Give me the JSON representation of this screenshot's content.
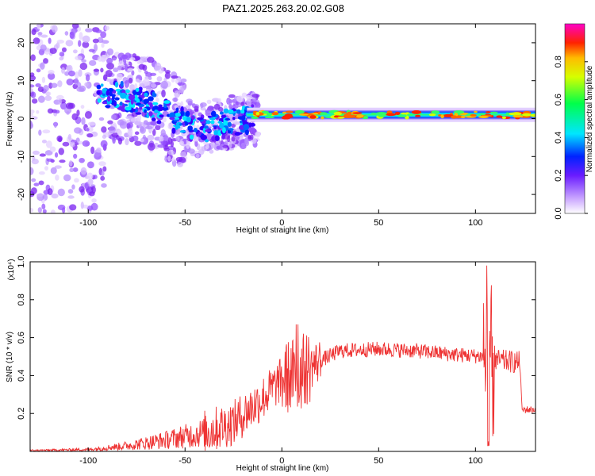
{
  "title": "PAZ1.2025.263.20.02.G08",
  "chart_data": [
    {
      "type": "heatmap",
      "name": "spectrogram",
      "xlabel": "Height of straight line (km)",
      "ylabel": "Frequency (Hz)",
      "xlim": [
        -130,
        131
      ],
      "ylim": [
        -25,
        25
      ],
      "x_ticks": [
        -100,
        -50,
        0,
        50,
        100
      ],
      "y_ticks": [
        -20,
        -10,
        0,
        10,
        20
      ],
      "colorbar": {
        "label": "Normalized spectral amplitude",
        "range": [
          0,
          1
        ],
        "ticks": [
          0.0,
          0.2,
          0.4,
          0.6,
          0.8
        ]
      },
      "ridge": [
        {
          "x": -125,
          "f": 8
        },
        {
          "x": -110,
          "f": 7
        },
        {
          "x": -95,
          "f": 6
        },
        {
          "x": -85,
          "f": 6
        },
        {
          "x": -75,
          "f": 5
        },
        {
          "x": -65,
          "f": 3
        },
        {
          "x": -55,
          "f": 0
        },
        {
          "x": -45,
          "f": -3
        },
        {
          "x": -35,
          "f": -2
        },
        {
          "x": -25,
          "f": -1
        },
        {
          "x": -15,
          "f": 0
        },
        {
          "x": 0,
          "f": 1
        },
        {
          "x": 20,
          "f": 0
        },
        {
          "x": 50,
          "f": 1
        },
        {
          "x": 80,
          "f": 1
        },
        {
          "x": 105,
          "f": 1
        },
        {
          "x": 131,
          "f": 1
        }
      ]
    },
    {
      "type": "line",
      "name": "snr",
      "xlabel": "Height of straight line (km)",
      "ylabel": "SNR (10 * v/v)",
      "y_multiplier": "(x10⁴)",
      "color": "#ee3333",
      "xlim": [
        -130,
        131
      ],
      "ylim": [
        0,
        1.0
      ],
      "x_ticks": [
        -100,
        -50,
        0,
        50,
        100
      ],
      "y_ticks": [
        0.2,
        0.4,
        0.6,
        0.8,
        1.0
      ],
      "envelope": [
        {
          "x": -130,
          "y": 0.005
        },
        {
          "x": -100,
          "y": 0.01
        },
        {
          "x": -80,
          "y": 0.03
        },
        {
          "x": -60,
          "y": 0.06
        },
        {
          "x": -40,
          "y": 0.1
        },
        {
          "x": -25,
          "y": 0.15
        },
        {
          "x": -10,
          "y": 0.28
        },
        {
          "x": 0,
          "y": 0.38
        },
        {
          "x": 10,
          "y": 0.42
        },
        {
          "x": 20,
          "y": 0.48
        },
        {
          "x": 30,
          "y": 0.53
        },
        {
          "x": 50,
          "y": 0.54
        },
        {
          "x": 70,
          "y": 0.53
        },
        {
          "x": 90,
          "y": 0.51
        },
        {
          "x": 105,
          "y": 0.5
        },
        {
          "x": 110,
          "y": 0.48
        },
        {
          "x": 123,
          "y": 0.47
        },
        {
          "x": 124,
          "y": 0.22
        },
        {
          "x": 131,
          "y": 0.22
        }
      ]
    }
  ]
}
